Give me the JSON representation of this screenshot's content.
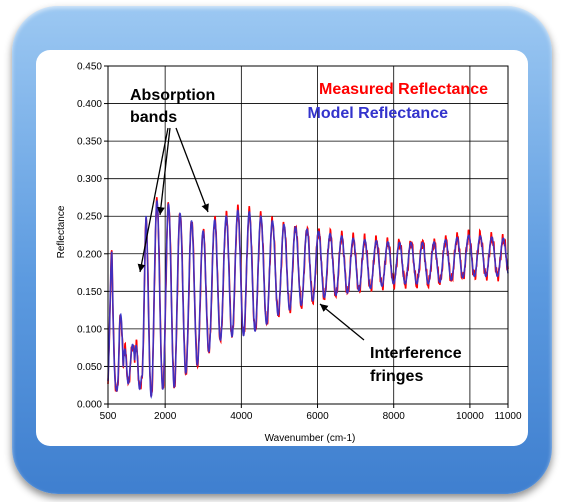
{
  "chart_data": {
    "type": "line",
    "xlabel": "Wavenumber (cm-1)",
    "ylabel": "Reflectance",
    "xlim": [
      500,
      11000
    ],
    "ylim": [
      0.0,
      0.45
    ],
    "x_ticks": [
      {
        "v": 500,
        "label": "500"
      },
      {
        "v": 2000,
        "label": "2000"
      },
      {
        "v": 4000,
        "label": "4000"
      },
      {
        "v": 6000,
        "label": "6000"
      },
      {
        "v": 8000,
        "label": "8000"
      },
      {
        "v": 10000,
        "label": "10000"
      },
      {
        "v": 11000,
        "label": "11000"
      }
    ],
    "y_ticks": [
      {
        "v": 0.0,
        "label": "0.000"
      },
      {
        "v": 0.05,
        "label": "0.050"
      },
      {
        "v": 0.1,
        "label": "0.100"
      },
      {
        "v": 0.15,
        "label": "0.150"
      },
      {
        "v": 0.2,
        "label": "0.200"
      },
      {
        "v": 0.25,
        "label": "0.250"
      },
      {
        "v": 0.3,
        "label": "0.300"
      },
      {
        "v": 0.35,
        "label": "0.350"
      },
      {
        "v": 0.4,
        "label": "0.400"
      },
      {
        "v": 0.45,
        "label": "0.450"
      }
    ],
    "grid": true,
    "legend_position": "top-right",
    "series": [
      {
        "name": "Measured Reflectance",
        "color": "#ff0000"
      },
      {
        "name": "Model Reflectance",
        "color": "#3333cc"
      }
    ],
    "envelope": {
      "x": [
        500,
        600,
        700,
        800,
        900,
        1000,
        1100,
        1200,
        1300,
        1400,
        1500,
        1600,
        1700,
        1800,
        1900,
        2000,
        2200,
        2500,
        2800,
        3000,
        3300,
        3600,
        4000,
        4500,
        5000,
        5500,
        6000,
        7000,
        8000,
        9000,
        10000,
        11000
      ],
      "max": [
        0.04,
        0.22,
        0.08,
        0.19,
        0.05,
        0.18,
        0.11,
        0.06,
        0.18,
        0.06,
        0.26,
        0.27,
        0.27,
        0.27,
        0.26,
        0.27,
        0.26,
        0.25,
        0.24,
        0.23,
        0.245,
        0.25,
        0.26,
        0.25,
        0.24,
        0.235,
        0.23,
        0.22,
        0.215,
        0.215,
        0.225,
        0.22
      ],
      "min": [
        0.02,
        0.01,
        0.02,
        0.01,
        0.02,
        0.03,
        0.02,
        0.02,
        0.02,
        0.02,
        0.01,
        0.01,
        0.01,
        0.01,
        0.02,
        0.02,
        0.02,
        0.04,
        0.05,
        0.06,
        0.08,
        0.09,
        0.09,
        0.1,
        0.12,
        0.13,
        0.14,
        0.15,
        0.16,
        0.16,
        0.17,
        0.17
      ]
    },
    "fringes_per_1000": 3.3,
    "annotations": [
      {
        "id": "absorption",
        "text_lines": [
          "Absorption",
          "bands"
        ]
      },
      {
        "id": "interference",
        "text_lines": [
          "Interference",
          "fringes"
        ]
      }
    ]
  }
}
